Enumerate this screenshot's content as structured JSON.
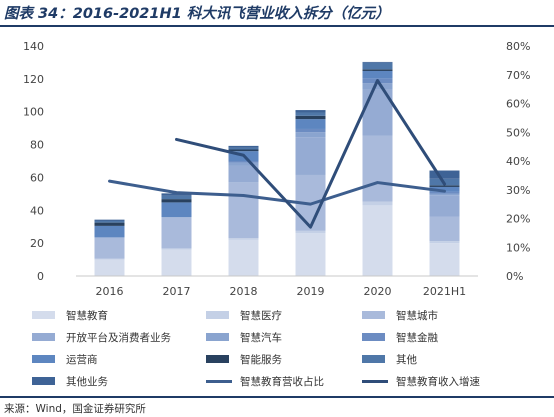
{
  "header": {
    "title": "图表 34：2016-2021H1 科大讯飞营业收入拆分（亿元）"
  },
  "footer": {
    "source": "来源：Wind，国金证券研究所"
  },
  "chart_data": {
    "type": "bar",
    "categories": [
      "2016",
      "2017",
      "2018",
      "2019",
      "2020",
      "2021H1"
    ],
    "y_left_lim": [
      0,
      140
    ],
    "y_left_ticks": [
      0,
      20,
      40,
      60,
      80,
      100,
      120,
      140
    ],
    "y_right_lim": [
      0,
      0.8
    ],
    "y_right_ticks": [
      "0%",
      "10%",
      "20%",
      "30%",
      "40%",
      "50%",
      "60%",
      "70%",
      "80%"
    ],
    "grid": false,
    "legend_position": "bottom",
    "bar_series": [
      {
        "name": "智慧教育",
        "color": "#d4dcec",
        "values": [
          10,
          16,
          22,
          26,
          43,
          20
        ]
      },
      {
        "name": "智慧医疗",
        "color": "#c4d0e6",
        "values": [
          0.5,
          0.8,
          1,
          1.5,
          2.3,
          1.2
        ]
      },
      {
        "name": "智慧城市",
        "color": "#a9badb",
        "values": [
          13,
          19,
          34,
          34,
          40,
          15
        ]
      },
      {
        "name": "开放平台及消费者业务",
        "color": "#95abd3",
        "values": [
          0,
          0,
          10,
          23,
          28,
          13
        ]
      },
      {
        "name": "智慧汽车",
        "color": "#8aa4cf",
        "values": [
          0,
          0,
          2,
          3,
          4,
          1
        ]
      },
      {
        "name": "智慧金融",
        "color": "#6c8cc2",
        "values": [
          0,
          0,
          1,
          2,
          3,
          1
        ]
      },
      {
        "name": "运营商",
        "color": "#5d86c0",
        "values": [
          7,
          9,
          6,
          6,
          4.5,
          3
        ]
      },
      {
        "name": "智能服务",
        "color": "#29415f",
        "values": [
          2,
          2,
          1,
          2,
          1,
          1
        ]
      },
      {
        "name": "其他",
        "color": "#4f77a8",
        "values": [
          1,
          2,
          1,
          2,
          4,
          4
        ]
      },
      {
        "name": "其他业务",
        "color": "#3e6396",
        "values": [
          0.8,
          1.5,
          1.2,
          1.5,
          0.5,
          5
        ]
      }
    ],
    "line_series": [
      {
        "name": "智慧教育营收占比",
        "color": "#3d5e8e",
        "axis": "right",
        "values": [
          0.33,
          0.29,
          0.28,
          0.25,
          0.325,
          0.295
        ]
      },
      {
        "name": "智慧教育收入增速",
        "color": "#2f4d79",
        "axis": "right",
        "values": [
          null,
          0.475,
          0.42,
          0.17,
          0.68,
          0.32
        ]
      }
    ]
  }
}
